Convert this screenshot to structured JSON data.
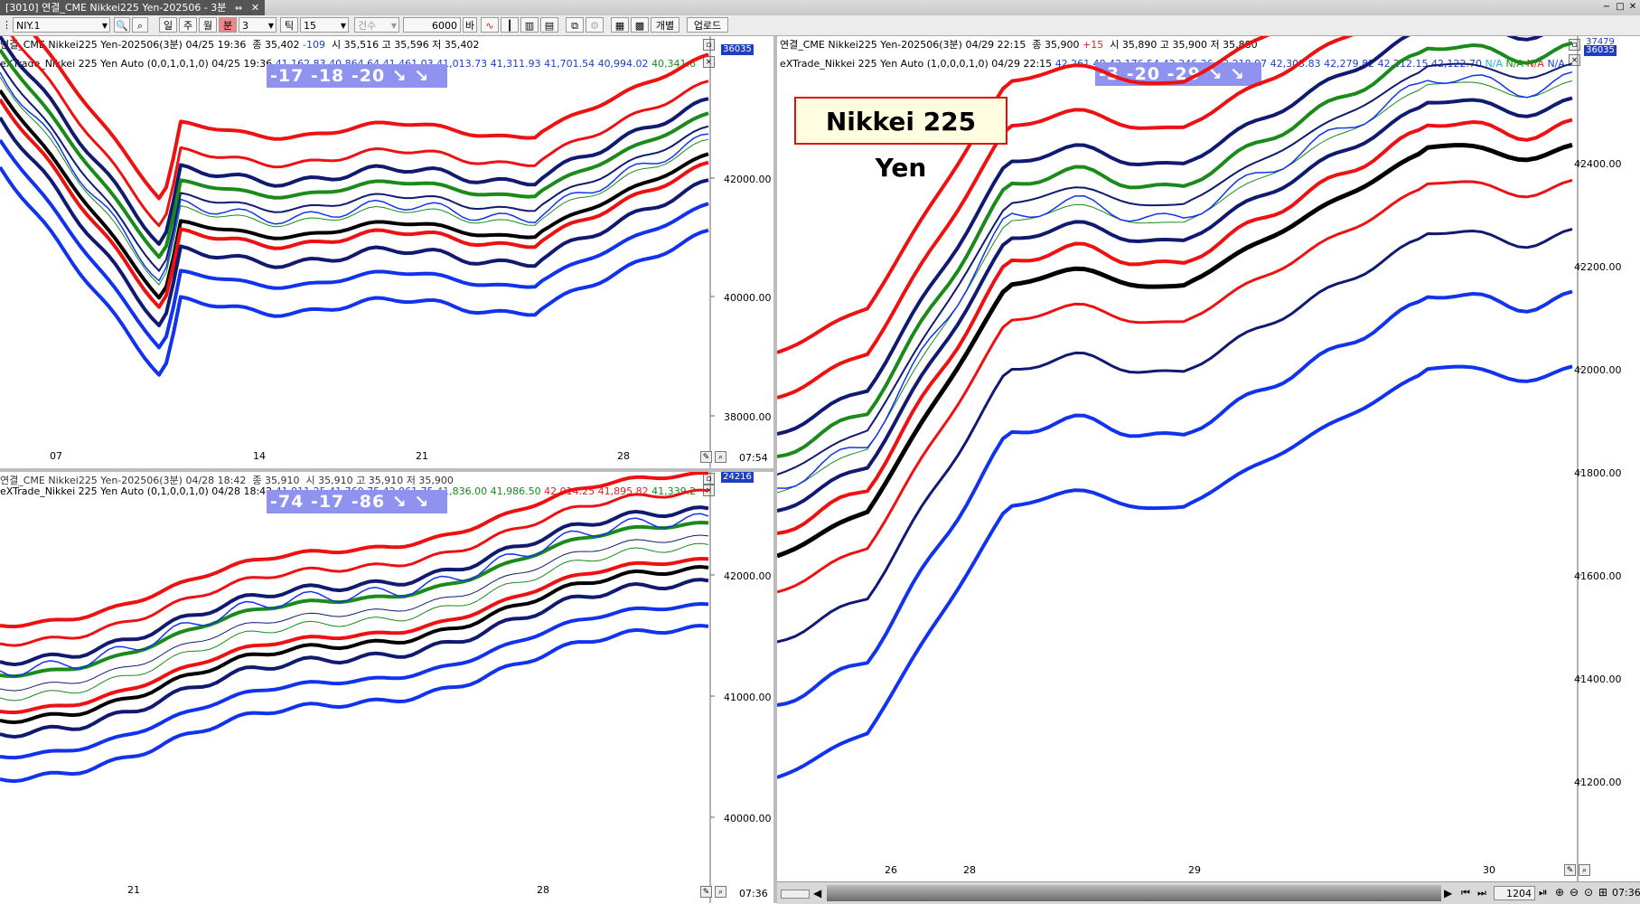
{
  "window": {
    "tab_title": "[3010] 연결_CME Nikkei225 Yen-202506 - 3분",
    "tab_icon": "⇔",
    "tab_close": "✕",
    "controls": [
      "−",
      "□",
      "✕"
    ]
  },
  "toolbar": {
    "symbol": "NIY.1",
    "period_buttons": [
      "일",
      "주",
      "월",
      "분"
    ],
    "period_selected": "분",
    "interval": "3",
    "tick_label": "틱",
    "tick_value": "15",
    "count_label": "건수",
    "bars": "6000",
    "bars_suffix": "바",
    "single_label": "개별",
    "upload_label": "업로드"
  },
  "panels": {
    "top_left": {
      "header1": {
        "name": "연결_CME Nikkei225 Yen-202506(3분)",
        "datetime": "04/25 19:36",
        "close_label": "종",
        "close": "35,402",
        "change": "-109",
        "open_label": "시",
        "open": "35,516",
        "high_label": "고",
        "high": "35,596",
        "low_label": "저",
        "low": "35,402"
      },
      "header2": {
        "indicator": "eXTrade_Nikkei 225 Yen Auto",
        "params": "(0,0,1,0,1,0)",
        "datetime": "04/25 19:36",
        "values_blue": "41,162.83  40,864.64  41,461.03  41,013.73  41,311.93  41,701.54  40,994.02",
        "values_green": "40,341.6"
      },
      "badge": "-17   -18   -20  ↘ ↘",
      "price_tag": "36035",
      "yaxis": [
        "42000.00",
        "40000.00",
        "38000.00"
      ],
      "xaxis": [
        "07",
        "14",
        "21",
        "28"
      ],
      "time": "07:54"
    },
    "bottom_left": {
      "header1": {
        "name": "연결_CME Nikkei225 Yen-202506(3분)",
        "datetime": "04/28 18:42",
        "close_label": "종",
        "close": "35,910",
        "open_label": "시",
        "open": "35,910",
        "high_label": "고",
        "high": "35,910",
        "low_label": "저",
        "low": "35,900"
      },
      "header2": {
        "indicator": "eXTrade_Nikkei 225 Yen Auto",
        "params": "(0,1,0,0,1,0)",
        "datetime": "04/28 18:42",
        "values_blue": "41,911.25  41,760.75  42,061.75",
        "values_green": "41,836.00  41,986.50",
        "values_red": "42,014.25  41,895.82",
        "values_green2": "41,339.2"
      },
      "badge": "-74   -17   -86  ↘ ↘",
      "price_tag": "24216",
      "yaxis": [
        "42000.00",
        "41000.00",
        "40000.00"
      ],
      "xaxis": [
        "21",
        "28"
      ],
      "time": "07:36"
    },
    "right": {
      "header1": {
        "name": "연결_CME Nikkei225 Yen-202506(3분)",
        "datetime": "04/29 22:15",
        "close_label": "종",
        "close": "35,900",
        "change": "+15",
        "open_label": "시",
        "open": "35,890",
        "high_label": "고",
        "high": "35,900",
        "low_label": "저",
        "low": "35,880"
      },
      "header2": {
        "indicator": "eXTrade_Nikkei 225 Yen Auto",
        "params": "(1,0,0,0,1,0)",
        "datetime": "04/29 22:15",
        "values_blue": "42,261.40  42,176.54  42,346.26  42,218.97  42,303.83  42,279.82  42,212.15  42,122.70",
        "na_cyan": "N/A",
        "na_green": "N/A",
        "na_red": "N/A",
        "na_blue": "N/A"
      },
      "badge": "-3   -20   -29  ↘ ↘",
      "price_tag": "36035",
      "price_tag2": "37479",
      "title_box": "Nikkei 225 Yen",
      "yaxis": [
        "42400.00",
        "42200.00",
        "42000.00",
        "41800.00",
        "41600.00",
        "41400.00",
        "41200.00"
      ],
      "xaxis": [
        "26",
        "28",
        "29",
        "30"
      ],
      "time": "07:36",
      "scroll_value": "1204"
    }
  },
  "colors": {
    "red": "#ee1111",
    "blue": "#1133ee",
    "navy": "#101a70",
    "green": "#1a8a1a",
    "black": "#000000",
    "badge": "#8f93ef"
  }
}
